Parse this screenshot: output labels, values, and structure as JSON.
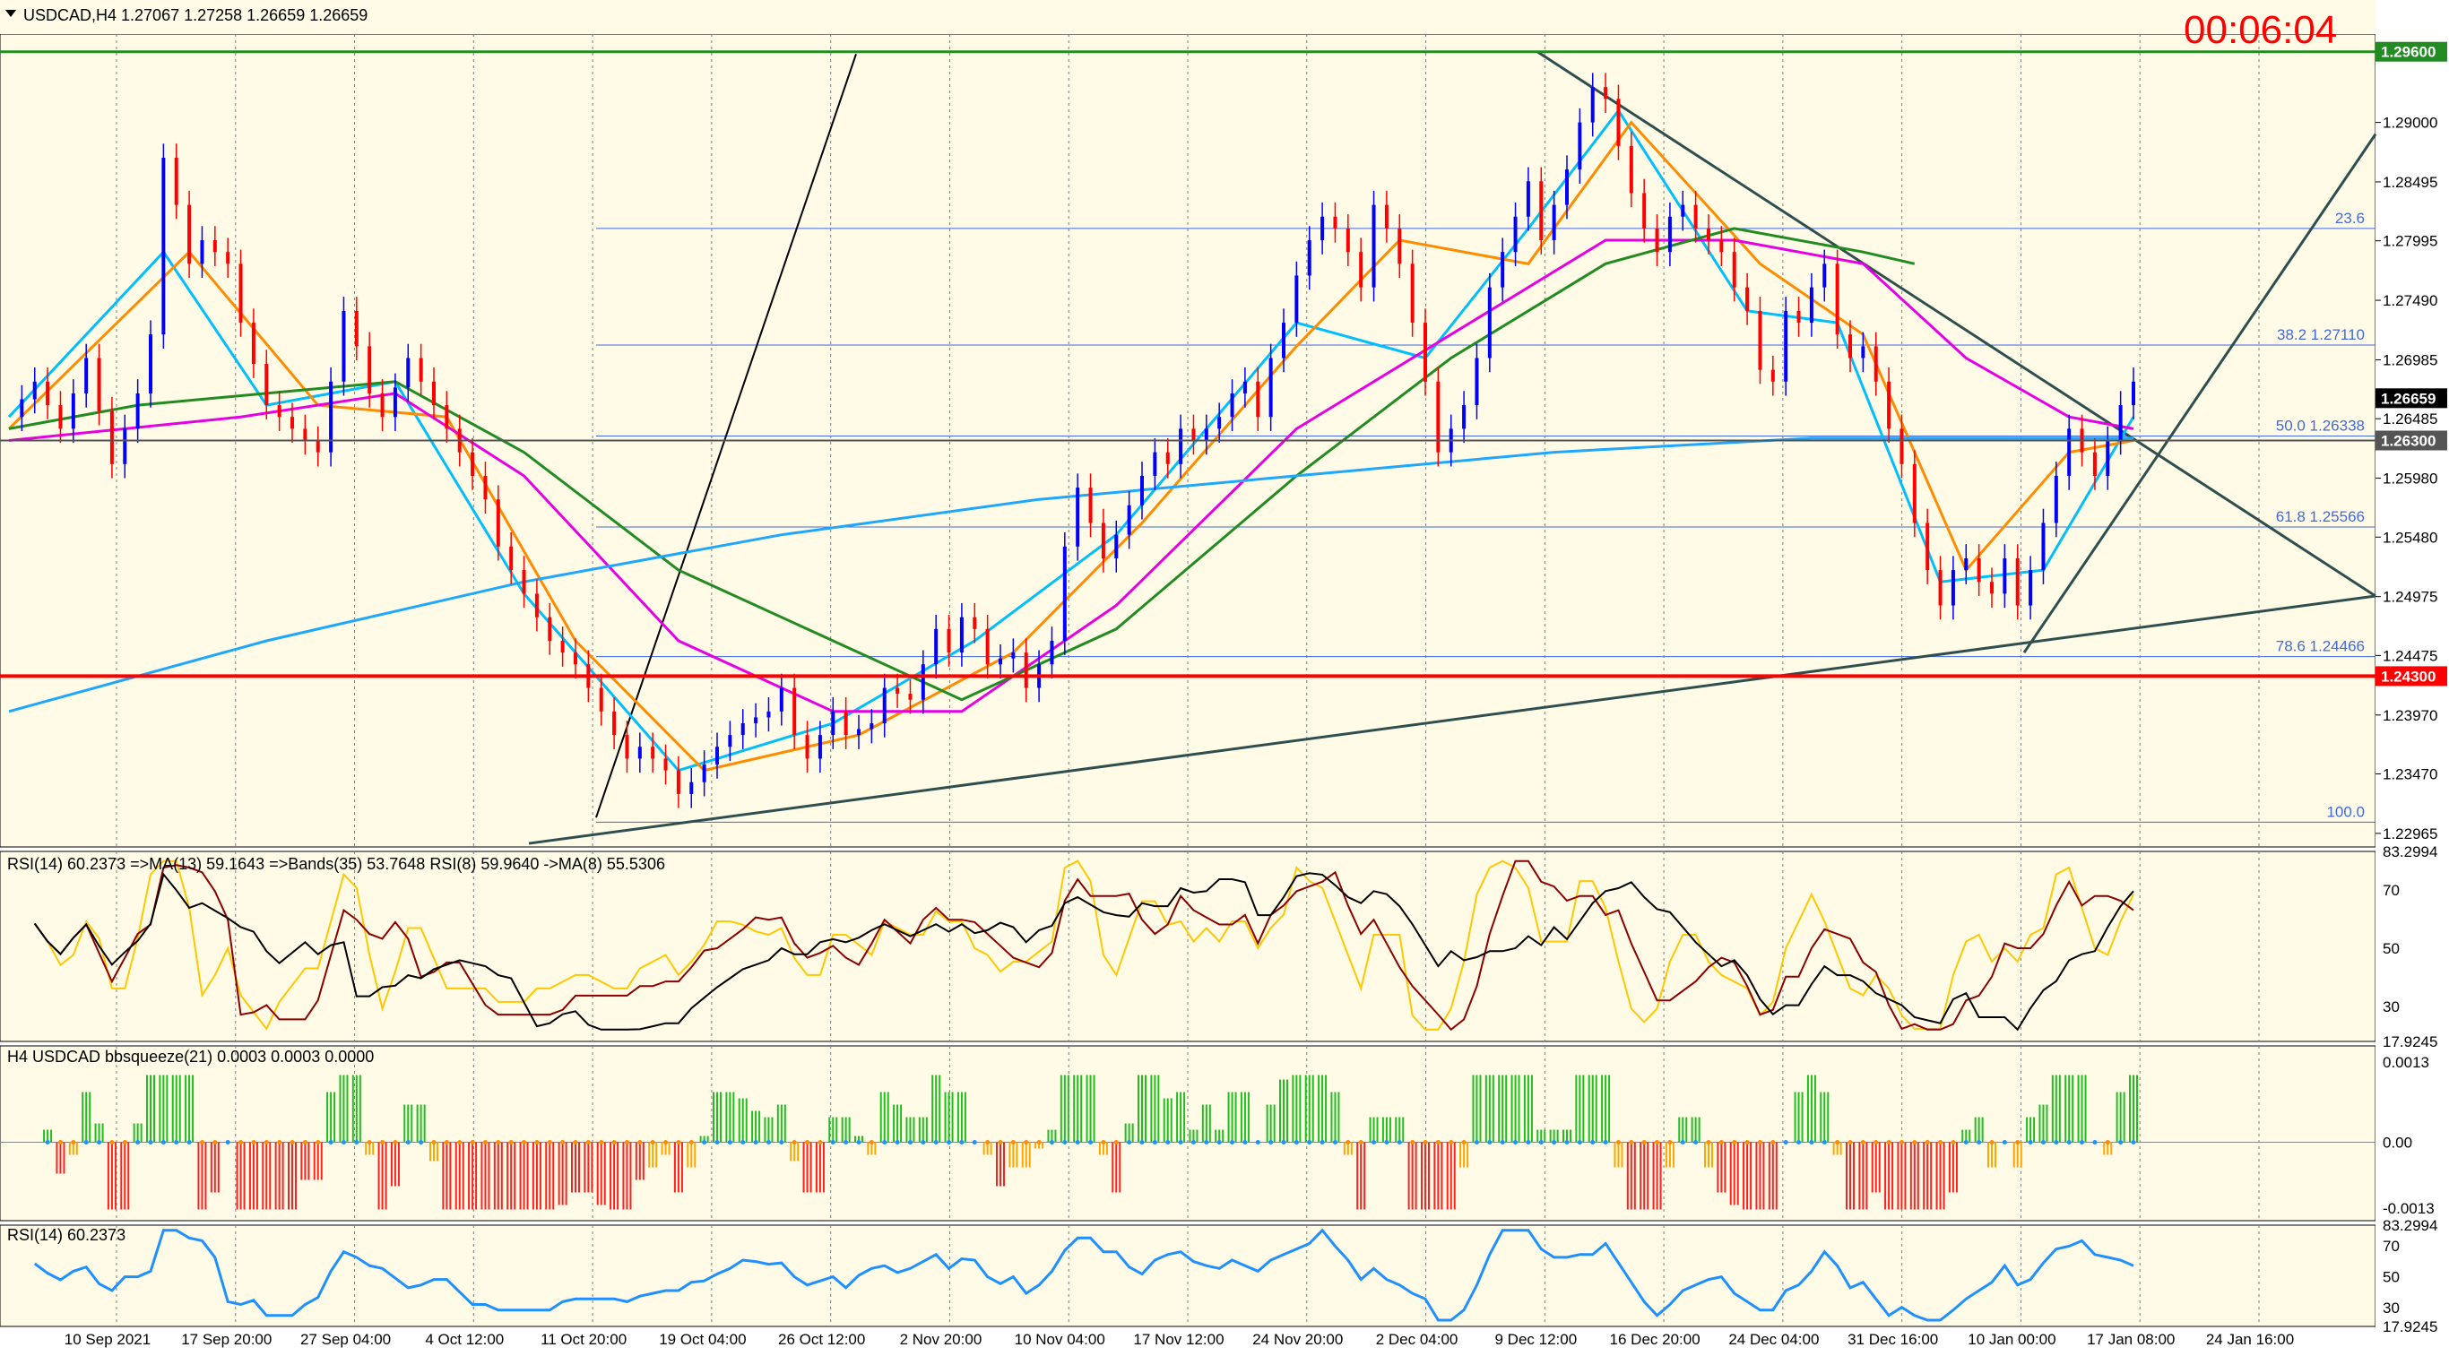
{
  "header": {
    "symbol_line": "USDCAD,H4  1.27067 1.27258 1.26659 1.26659",
    "timer": "00:06:04",
    "timer_color": "#ff0000"
  },
  "colors": {
    "background": "#fffbe6",
    "bull": "#0000ff",
    "bear": "#ff0000",
    "grid": "#7f7f7f",
    "fib_line": "#4169e1",
    "ma_fast": "#00bfff",
    "ma_orange": "#ff8c00",
    "ma_magenta": "#e600e6",
    "ma_green": "#228b22",
    "ma_long": "#1ea7ff",
    "rsi_yellow": "#ffc800",
    "rsi_red": "#8b0000",
    "rsi_black": "#000000",
    "rsi_blue": "#1e90ff",
    "hist_green": "#1fbf1f",
    "hist_red": "#ff2020",
    "hist_orange": "#ffa500"
  },
  "price_axis": {
    "ticks": [
      "1.29000",
      "1.28495",
      "1.27995",
      "1.27490",
      "1.26985",
      "1.26485",
      "1.25980",
      "1.25480",
      "1.24975",
      "1.24475",
      "1.23970",
      "1.23470",
      "1.22965"
    ],
    "markers": [
      {
        "label": "1.29600",
        "bg": "#228b22"
      },
      {
        "label": "1.26659",
        "bg": "#000000"
      },
      {
        "label": "1.26300",
        "bg": "#555555"
      },
      {
        "label": "1.24300",
        "bg": "#ff0000"
      }
    ]
  },
  "fib_levels": [
    {
      "text": "23.6",
      "price": 1.281
    },
    {
      "text": "38.2  1.27110",
      "price": 1.2711
    },
    {
      "text": "50.0  1.26338",
      "price": 1.26338
    },
    {
      "text": "61.8  1.25566",
      "price": 1.25566
    },
    {
      "text": "78.6  1.24466",
      "price": 1.24466
    },
    {
      "text": "100.0",
      "price": 1.2306
    }
  ],
  "time_axis": [
    "10 Sep 2021",
    "17 Sep 20:00",
    "27 Sep 04:00",
    "4 Oct 12:00",
    "11 Oct 20:00",
    "19 Oct 04:00",
    "26 Oct 12:00",
    "2 Nov 20:00",
    "10 Nov 04:00",
    "17 Nov 12:00",
    "24 Nov 20:00",
    "2 Dec 04:00",
    "9 Dec 12:00",
    "16 Dec 20:00",
    "24 Dec 04:00",
    "31 Dec 16:00",
    "10 Jan 00:00",
    "17 Jan 08:00",
    "24 Jan 16:00"
  ],
  "panels": {
    "rsi_multi": {
      "title": "RSI(14) 60.2373  =>MA(13) 59.1643  =>Bands(35) 53.7648  RSI(8) 59.9640  ->MA(8) 55.5306",
      "ticks": [
        "83.2994",
        "70",
        "50",
        "30",
        "17.9245"
      ]
    },
    "squeeze": {
      "title": "H4 USDCAD bbsqueeze(21) 0.0003 0.0003 0.0000",
      "ticks": [
        "0.0013",
        "0.00",
        "-0.0013"
      ]
    },
    "rsi": {
      "title": "RSI(14) 60.2373",
      "ticks": [
        "83.2994",
        "70",
        "50",
        "30",
        "17.9245"
      ]
    }
  },
  "chart_data": {
    "type": "candlestick",
    "symbol": "USDCAD",
    "timeframe": "H4",
    "ohlc_last": {
      "open": 1.27067,
      "high": 1.27258,
      "low": 1.26659,
      "close": 1.26659
    },
    "ylim": [
      1.2285,
      1.2975
    ],
    "horizontal_levels": [
      1.296,
      1.263,
      1.243
    ],
    "close_path": [
      [
        0,
        1.265
      ],
      [
        2,
        1.268
      ],
      [
        4,
        1.264
      ],
      [
        6,
        1.27
      ],
      [
        8,
        1.261
      ],
      [
        10,
        1.267
      ],
      [
        11,
        1.272
      ],
      [
        12,
        1.287
      ],
      [
        13,
        1.283
      ],
      [
        14,
        1.278
      ],
      [
        15,
        1.28
      ],
      [
        17,
        1.278
      ],
      [
        18,
        1.273
      ],
      [
        20,
        1.266
      ],
      [
        22,
        1.264
      ],
      [
        24,
        1.262
      ],
      [
        25,
        1.268
      ],
      [
        26,
        1.274
      ],
      [
        27,
        1.271
      ],
      [
        28,
        1.267
      ],
      [
        29,
        1.265
      ],
      [
        31,
        1.27
      ],
      [
        32,
        1.268
      ],
      [
        34,
        1.264
      ],
      [
        35,
        1.262
      ],
      [
        37,
        1.258
      ],
      [
        38,
        1.254
      ],
      [
        40,
        1.25
      ],
      [
        42,
        1.246
      ],
      [
        44,
        1.244
      ],
      [
        46,
        1.24
      ],
      [
        48,
        1.236
      ],
      [
        49,
        1.237
      ],
      [
        51,
        1.235
      ],
      [
        52,
        1.233
      ],
      [
        53,
        1.234
      ],
      [
        55,
        1.237
      ],
      [
        57,
        1.239
      ],
      [
        59,
        1.24
      ],
      [
        60,
        1.242
      ],
      [
        61,
        1.238
      ],
      [
        62,
        1.236
      ],
      [
        64,
        1.24
      ],
      [
        65,
        1.238
      ],
      [
        67,
        1.239
      ],
      [
        68,
        1.242
      ],
      [
        70,
        1.241
      ],
      [
        71,
        1.244
      ],
      [
        72,
        1.247
      ],
      [
        73,
        1.245
      ],
      [
        74,
        1.248
      ],
      [
        75,
        1.247
      ],
      [
        76,
        1.244
      ],
      [
        78,
        1.245
      ],
      [
        79,
        1.242
      ],
      [
        81,
        1.246
      ],
      [
        82,
        1.254
      ],
      [
        83,
        1.259
      ],
      [
        84,
        1.256
      ],
      [
        85,
        1.253
      ],
      [
        86,
        1.255
      ],
      [
        88,
        1.26
      ],
      [
        89,
        1.262
      ],
      [
        90,
        1.261
      ],
      [
        91,
        1.264
      ],
      [
        92,
        1.263
      ],
      [
        94,
        1.265
      ],
      [
        95,
        1.267
      ],
      [
        96,
        1.268
      ],
      [
        97,
        1.265
      ],
      [
        98,
        1.27
      ],
      [
        99,
        1.273
      ],
      [
        100,
        1.277
      ],
      [
        101,
        1.28
      ],
      [
        102,
        1.282
      ],
      [
        103,
        1.281
      ],
      [
        104,
        1.279
      ],
      [
        105,
        1.276
      ],
      [
        106,
        1.283
      ],
      [
        107,
        1.281
      ],
      [
        108,
        1.278
      ],
      [
        109,
        1.273
      ],
      [
        110,
        1.268
      ],
      [
        111,
        1.262
      ],
      [
        112,
        1.264
      ],
      [
        113,
        1.266
      ],
      [
        114,
        1.27
      ],
      [
        115,
        1.276
      ],
      [
        116,
        1.279
      ],
      [
        117,
        1.282
      ],
      [
        118,
        1.285
      ],
      [
        119,
        1.28
      ],
      [
        120,
        1.283
      ],
      [
        121,
        1.286
      ],
      [
        122,
        1.29
      ],
      [
        123,
        1.293
      ],
      [
        124,
        1.292
      ],
      [
        125,
        1.288
      ],
      [
        126,
        1.284
      ],
      [
        127,
        1.281
      ],
      [
        128,
        1.279
      ],
      [
        129,
        1.282
      ],
      [
        130,
        1.283
      ],
      [
        131,
        1.281
      ],
      [
        132,
        1.28
      ],
      [
        133,
        1.279
      ],
      [
        134,
        1.276
      ],
      [
        135,
        1.274
      ],
      [
        136,
        1.269
      ],
      [
        137,
        1.268
      ],
      [
        138,
        1.274
      ],
      [
        139,
        1.273
      ],
      [
        140,
        1.276
      ],
      [
        141,
        1.278
      ],
      [
        142,
        1.272
      ],
      [
        143,
        1.27
      ],
      [
        144,
        1.271
      ],
      [
        145,
        1.268
      ],
      [
        146,
        1.264
      ],
      [
        147,
        1.261
      ],
      [
        148,
        1.256
      ],
      [
        149,
        1.252
      ],
      [
        150,
        1.249
      ],
      [
        151,
        1.252
      ],
      [
        152,
        1.253
      ],
      [
        153,
        1.251
      ],
      [
        154,
        1.25
      ],
      [
        155,
        1.253
      ],
      [
        156,
        1.249
      ],
      [
        157,
        1.252
      ],
      [
        158,
        1.256
      ],
      [
        159,
        1.26
      ],
      [
        160,
        1.264
      ],
      [
        161,
        1.262
      ],
      [
        162,
        1.26
      ],
      [
        163,
        1.263
      ],
      [
        164,
        1.266
      ],
      [
        165,
        1.268
      ]
    ],
    "ma_lines": [
      {
        "name": "MA fast",
        "points": [
          [
            0,
            1.265
          ],
          [
            12,
            1.279
          ],
          [
            20,
            1.266
          ],
          [
            30,
            1.268
          ],
          [
            40,
            1.25
          ],
          [
            52,
            1.235
          ],
          [
            64,
            1.239
          ],
          [
            75,
            1.246
          ],
          [
            86,
            1.255
          ],
          [
            100,
            1.273
          ],
          [
            110,
            1.27
          ],
          [
            118,
            1.281
          ],
          [
            125,
            1.291
          ],
          [
            135,
            1.274
          ],
          [
            142,
            1.273
          ],
          [
            150,
            1.251
          ],
          [
            158,
            1.252
          ],
          [
            165,
            1.265
          ]
        ]
      },
      {
        "name": "MA orange",
        "points": [
          [
            0,
            1.264
          ],
          [
            14,
            1.279
          ],
          [
            24,
            1.266
          ],
          [
            34,
            1.265
          ],
          [
            44,
            1.246
          ],
          [
            54,
            1.235
          ],
          [
            66,
            1.238
          ],
          [
            78,
            1.245
          ],
          [
            88,
            1.256
          ],
          [
            100,
            1.271
          ],
          [
            108,
            1.28
          ],
          [
            118,
            1.278
          ],
          [
            126,
            1.29
          ],
          [
            136,
            1.278
          ],
          [
            144,
            1.272
          ],
          [
            152,
            1.252
          ],
          [
            160,
            1.262
          ],
          [
            165,
            1.263
          ]
        ]
      },
      {
        "name": "MA magenta",
        "points": [
          [
            0,
            1.263
          ],
          [
            18,
            1.265
          ],
          [
            30,
            1.267
          ],
          [
            40,
            1.26
          ],
          [
            52,
            1.246
          ],
          [
            64,
            1.24
          ],
          [
            74,
            1.24
          ],
          [
            86,
            1.249
          ],
          [
            100,
            1.264
          ],
          [
            112,
            1.272
          ],
          [
            124,
            1.28
          ],
          [
            134,
            1.28
          ],
          [
            144,
            1.278
          ],
          [
            152,
            1.27
          ],
          [
            160,
            1.265
          ],
          [
            165,
            1.264
          ]
        ]
      },
      {
        "name": "MA green",
        "points": [
          [
            0,
            1.264
          ],
          [
            10,
            1.266
          ],
          [
            20,
            1.267
          ],
          [
            30,
            1.268
          ],
          [
            40,
            1.262
          ],
          [
            52,
            1.252
          ],
          [
            64,
            1.246
          ],
          [
            74,
            1.241
          ],
          [
            86,
            1.247
          ],
          [
            100,
            1.26
          ],
          [
            112,
            1.27
          ],
          [
            124,
            1.278
          ],
          [
            134,
            1.281
          ],
          [
            144,
            1.279
          ],
          [
            148,
            1.278
          ]
        ]
      },
      {
        "name": "MA long",
        "points": [
          [
            0,
            1.24
          ],
          [
            20,
            1.246
          ],
          [
            40,
            1.251
          ],
          [
            60,
            1.255
          ],
          [
            80,
            1.258
          ],
          [
            100,
            1.26
          ],
          [
            120,
            1.262
          ],
          [
            140,
            1.2632
          ],
          [
            165,
            1.2632
          ]
        ]
      }
    ],
    "rsi14_last": 60.2373,
    "rsi_ylim": [
      17.9245,
      83.2994
    ],
    "bbsqueeze_last": 0.0003,
    "bbsqueeze_ylim": [
      -0.0013,
      0.0013
    ]
  }
}
